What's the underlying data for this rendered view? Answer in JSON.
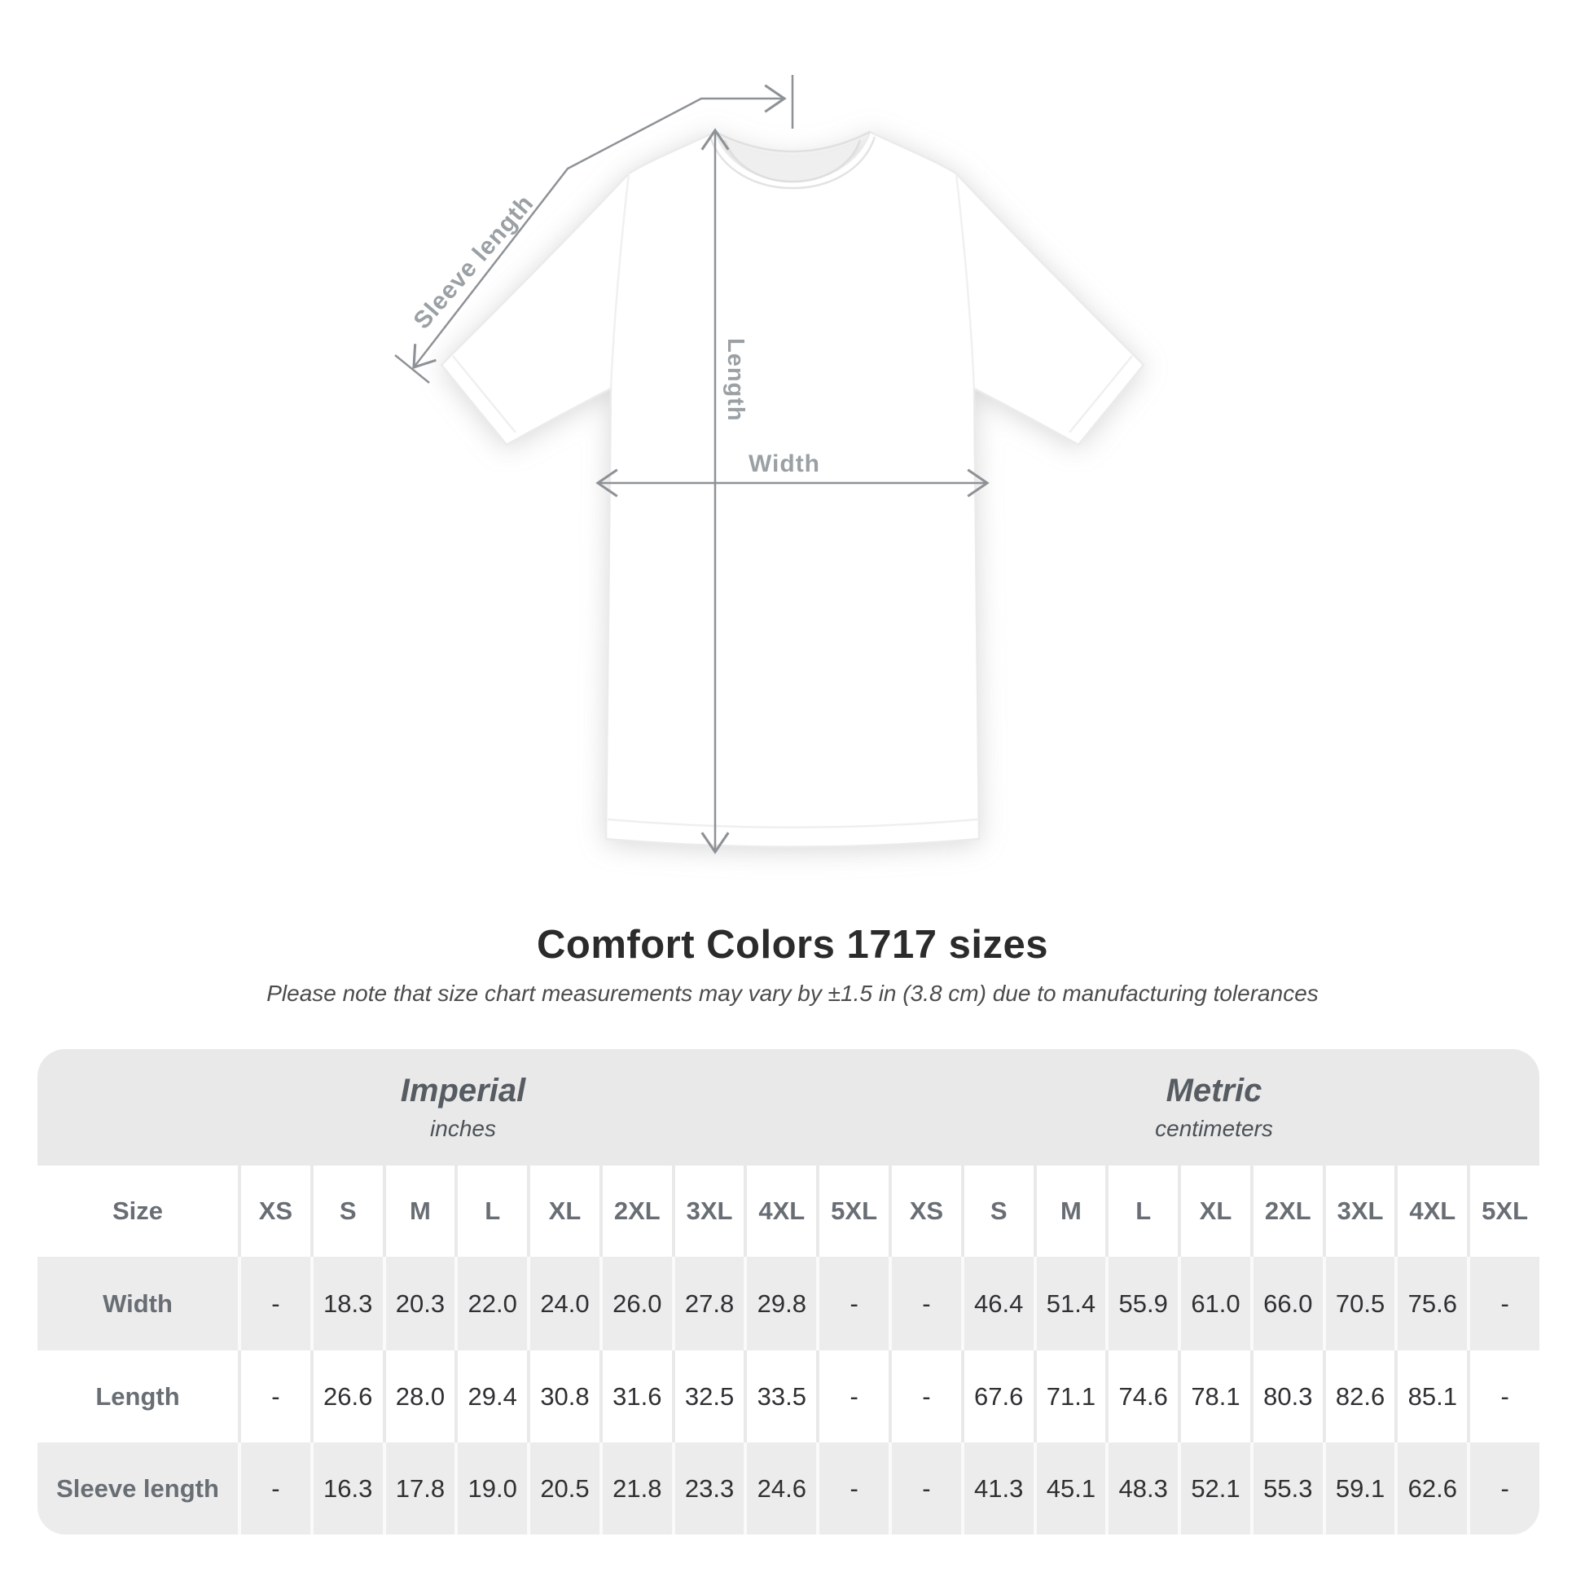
{
  "diagram": {
    "sleeve_length_label": "Sleeve length",
    "length_label": "Length",
    "width_label": "Width"
  },
  "title": "Comfort Colors 1717 sizes",
  "subtitle": "Please note that size chart measurements may vary by ±1.5 in (3.8 cm) due to manufacturing tolerances",
  "table": {
    "imperial": {
      "heading": "Imperial",
      "unit": "inches"
    },
    "metric": {
      "heading": "Metric",
      "unit": "centimeters"
    },
    "size_label": "Size",
    "sizes": [
      "XS",
      "S",
      "M",
      "L",
      "XL",
      "2XL",
      "3XL",
      "4XL",
      "5XL"
    ],
    "rows": [
      {
        "label": "Width",
        "imperial": [
          "-",
          "18.3",
          "20.3",
          "22.0",
          "24.0",
          "26.0",
          "27.8",
          "29.8",
          "-"
        ],
        "metric": [
          "-",
          "46.4",
          "51.4",
          "55.9",
          "61.0",
          "66.0",
          "70.5",
          "75.6",
          "-"
        ]
      },
      {
        "label": "Length",
        "imperial": [
          "-",
          "26.6",
          "28.0",
          "29.4",
          "30.8",
          "31.6",
          "32.5",
          "33.5",
          "-"
        ],
        "metric": [
          "-",
          "67.6",
          "71.1",
          "74.6",
          "78.1",
          "80.3",
          "82.6",
          "85.1",
          "-"
        ]
      },
      {
        "label": "Sleeve length",
        "imperial": [
          "-",
          "16.3",
          "17.8",
          "19.0",
          "20.5",
          "21.8",
          "23.3",
          "24.6",
          "-"
        ],
        "metric": [
          "-",
          "41.3",
          "45.1",
          "48.3",
          "52.1",
          "55.3",
          "59.1",
          "62.6",
          "-"
        ]
      }
    ]
  },
  "colors": {
    "measure_line": "#8e9296",
    "measure_label": "#9aa0a4",
    "band_background": "#e9e9e9",
    "stripe_background": "#ececec",
    "label_text": "#686e74",
    "value_text": "#2f3032",
    "title_text": "#2b2b2b"
  }
}
